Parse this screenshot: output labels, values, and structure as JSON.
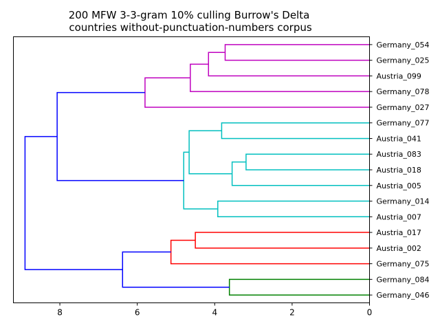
{
  "chart_data": {
    "type": "dendrogram",
    "title": "200 MFW 3-3-gram 10% culling Burrow's Delta",
    "subtitle": "countries without-punctuation-numbers corpus",
    "xlabel": "",
    "ylabel": "",
    "xlim": [
      9.2,
      0
    ],
    "x_ticks": [
      "8",
      "6",
      "4",
      "2",
      "0"
    ],
    "x_tick_values": [
      8,
      6,
      4,
      2,
      0
    ],
    "orientation": "left",
    "grid": false,
    "colors": {
      "magenta": "#bf00bf",
      "cyan": "#00bfbf",
      "red": "#ff0000",
      "green": "#008000",
      "blue": "#0000ff"
    },
    "leaves": [
      "Germany_054",
      "Germany_025",
      "Austria_099",
      "Germany_078",
      "Germany_027",
      "Germany_077",
      "Austria_041",
      "Austria_083",
      "Austria_018",
      "Austria_005",
      "Germany_014",
      "Austria_007",
      "Austria_017",
      "Austria_002",
      "Germany_075",
      "Germany_084",
      "Germany_046"
    ],
    "merges": [
      {
        "id": "m1",
        "left": 0,
        "right": 1,
        "height": 3.73,
        "color": "magenta"
      },
      {
        "id": "m2",
        "left": "m1",
        "right": 2,
        "height": 4.16,
        "color": "magenta"
      },
      {
        "id": "m3",
        "left": "m2",
        "right": 3,
        "height": 4.63,
        "color": "magenta"
      },
      {
        "id": "m4",
        "left": "m3",
        "right": 4,
        "height": 5.8,
        "color": "magenta"
      },
      {
        "id": "m5",
        "left": 5,
        "right": 6,
        "height": 3.82,
        "color": "cyan"
      },
      {
        "id": "m6",
        "left": 7,
        "right": 8,
        "height": 3.19,
        "color": "cyan"
      },
      {
        "id": "m7",
        "left": "m6",
        "right": 9,
        "height": 3.55,
        "color": "cyan"
      },
      {
        "id": "m8",
        "left": "m5",
        "right": "m7",
        "height": 4.66,
        "color": "cyan"
      },
      {
        "id": "m9",
        "left": 10,
        "right": 11,
        "height": 3.92,
        "color": "cyan"
      },
      {
        "id": "m10",
        "left": "m8",
        "right": "m9",
        "height": 4.8,
        "color": "cyan"
      },
      {
        "id": "m11",
        "left": "m4",
        "right": "m10",
        "height": 8.07,
        "color": "blue"
      },
      {
        "id": "m12",
        "left": 12,
        "right": 13,
        "height": 4.5,
        "color": "red"
      },
      {
        "id": "m13",
        "left": "m12",
        "right": 14,
        "height": 5.13,
        "color": "red"
      },
      {
        "id": "m14",
        "left": 15,
        "right": 16,
        "height": 3.62,
        "color": "green"
      },
      {
        "id": "m15",
        "left": "m13",
        "right": "m14",
        "height": 6.38,
        "color": "blue"
      },
      {
        "id": "m16",
        "left": "m11",
        "right": "m15",
        "height": 8.9,
        "color": "blue"
      }
    ]
  }
}
